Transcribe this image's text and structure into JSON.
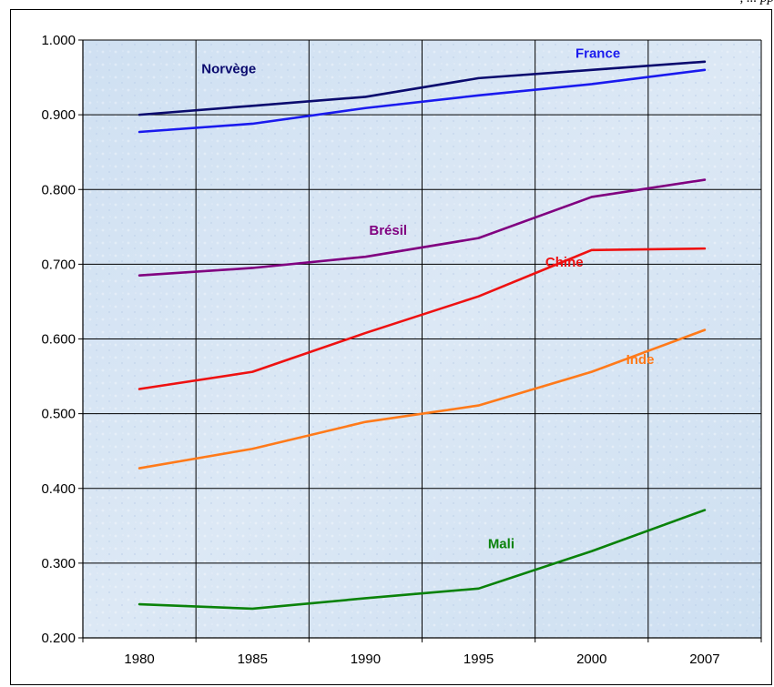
{
  "caption": ", ... pp",
  "chart_data": {
    "type": "line",
    "title": "",
    "xlabel": "",
    "ylabel": "",
    "categories": [
      "1980",
      "1985",
      "1990",
      "1995",
      "2000",
      "2007"
    ],
    "ylim": [
      0.2,
      1.0
    ],
    "yticks": [
      "0.200",
      "0.300",
      "0.400",
      "0.500",
      "0.600",
      "0.700",
      "0.800",
      "0.900",
      "1.000"
    ],
    "grid": true,
    "legend": "inline labels next to lines",
    "series": [
      {
        "name": "Norvège",
        "color": "#0a0a6e",
        "values": [
          0.9,
          0.912,
          0.924,
          0.949,
          0.96,
          0.971
        ]
      },
      {
        "name": "France",
        "color": "#1a1aee",
        "values": [
          0.877,
          0.888,
          0.909,
          0.926,
          0.941,
          0.96
        ]
      },
      {
        "name": "Brésil",
        "color": "#800080",
        "values": [
          0.685,
          0.695,
          0.71,
          0.735,
          0.79,
          0.813
        ]
      },
      {
        "name": "Chine",
        "color": "#ee1111",
        "values": [
          0.533,
          0.556,
          0.608,
          0.657,
          0.719,
          0.721
        ]
      },
      {
        "name": "Inde",
        "color": "#ff7a1a",
        "values": [
          0.427,
          0.453,
          0.489,
          0.511,
          0.556,
          0.612
        ]
      },
      {
        "name": "Mali",
        "color": "#0a820a",
        "values": [
          0.245,
          0.239,
          0.253,
          0.266,
          0.316,
          0.371
        ]
      }
    ]
  }
}
